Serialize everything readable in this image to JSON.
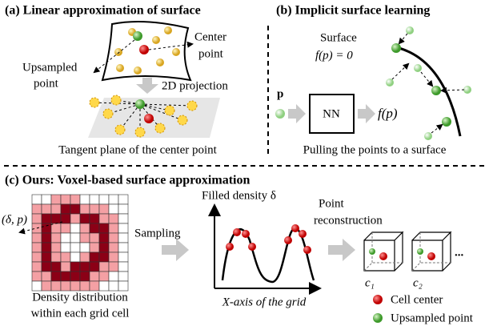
{
  "panel_a": {
    "title": "(a) Linear approximation of surface",
    "center_label": [
      "Center",
      "point"
    ],
    "upsampled_label": [
      "Upsampled",
      "point"
    ],
    "projection": "2D projection",
    "caption": "Tangent plane of the center point"
  },
  "panel_b": {
    "title": "(b) Implicit surface learning",
    "surface": "Surface",
    "equation": "f(p) = 0",
    "input": "p",
    "network": "NN",
    "output": "f(p)",
    "caption": "Pulling the points to a surface"
  },
  "panel_c": {
    "title": "(c) Ours: Voxel-based surface approximation",
    "pair": "(δ, p)",
    "sampling": "Sampling",
    "density_axis": "Filled density δ",
    "reconstruction": [
      "Point",
      "reconstruction"
    ],
    "x_axis": "X-axis of the grid",
    "caption": [
      "Density distribution",
      "within each grid cell"
    ],
    "cells": [
      "c₁",
      "c₂"
    ],
    "ellipsis": "...",
    "legend": [
      "Cell center",
      "Upsampled point"
    ]
  }
}
